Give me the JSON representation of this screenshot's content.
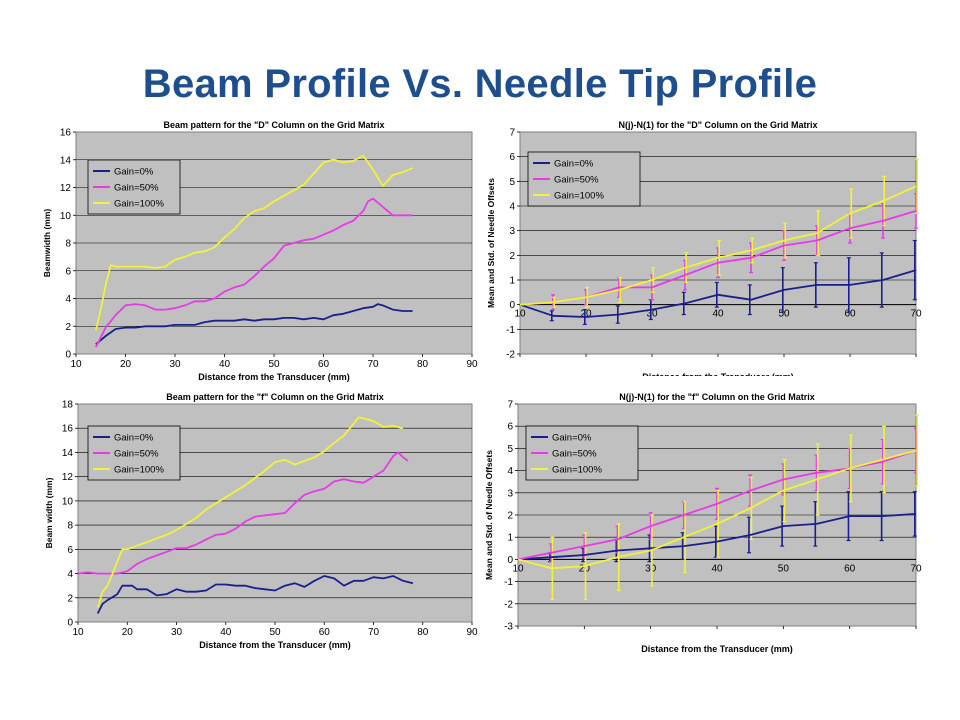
{
  "slide": {
    "title": "Beam Profile Vs. Needle Tip Profile"
  },
  "colors": {
    "gain0": "#1a1f8c",
    "gain50": "#e63be6",
    "gain100": "#f2f23a",
    "plot_bg": "#c0c0c0",
    "title": "#1f4e8c"
  },
  "chart_data": [
    {
      "type": "line",
      "title": "Beam pattern for the \"D\" Column on the Grid Matrix",
      "xlabel": "Distance from the Transducer (mm)",
      "ylabel": "Beamwidth (mm)",
      "xlim": [
        10,
        90
      ],
      "ylim": [
        0,
        16
      ],
      "xticks": [
        10,
        20,
        30,
        40,
        50,
        60,
        70,
        80,
        90
      ],
      "yticks": [
        0,
        2,
        4,
        6,
        8,
        10,
        12,
        14,
        16
      ],
      "legend_position": "top-left",
      "grid": true,
      "series": [
        {
          "name": "Gain=0%",
          "color": "#1a1f8c",
          "x": [
            14,
            16,
            18,
            20,
            22,
            24,
            26,
            28,
            30,
            32,
            34,
            36,
            38,
            40,
            42,
            44,
            46,
            48,
            50,
            52,
            54,
            56,
            58,
            60,
            62,
            64,
            66,
            68,
            70,
            71,
            72,
            74,
            76,
            78
          ],
          "y": [
            0.7,
            1.3,
            1.8,
            1.9,
            1.9,
            2.0,
            2.0,
            2.0,
            2.1,
            2.1,
            2.1,
            2.3,
            2.4,
            2.4,
            2.4,
            2.5,
            2.4,
            2.5,
            2.5,
            2.6,
            2.6,
            2.5,
            2.6,
            2.5,
            2.8,
            2.9,
            3.1,
            3.3,
            3.4,
            3.6,
            3.5,
            3.2,
            3.1,
            3.1
          ]
        },
        {
          "name": "Gain=50%",
          "color": "#e63be6",
          "x": [
            14,
            16,
            18,
            20,
            22,
            24,
            26,
            28,
            30,
            32,
            34,
            36,
            38,
            40,
            42,
            44,
            46,
            48,
            50,
            52,
            54,
            56,
            58,
            60,
            62,
            64,
            66,
            68,
            69,
            70,
            72,
            74,
            76,
            78
          ],
          "y": [
            0.5,
            1.9,
            2.8,
            3.5,
            3.6,
            3.5,
            3.2,
            3.2,
            3.3,
            3.5,
            3.8,
            3.8,
            4.0,
            4.5,
            4.8,
            5.0,
            5.6,
            6.3,
            6.9,
            7.8,
            8.0,
            8.2,
            8.3,
            8.6,
            8.9,
            9.3,
            9.6,
            10.3,
            11.0,
            11.2,
            10.6,
            10.0,
            10.0,
            10.0
          ]
        },
        {
          "name": "Gain=100%",
          "color": "#f2f23a",
          "x": [
            14,
            15,
            16,
            17,
            18,
            20,
            22,
            24,
            26,
            28,
            30,
            32,
            34,
            36,
            38,
            40,
            42,
            44,
            46,
            48,
            50,
            52,
            54,
            56,
            58,
            60,
            62,
            64,
            66,
            68,
            70,
            72,
            74,
            76,
            78
          ],
          "y": [
            1.7,
            3.2,
            5.0,
            6.4,
            6.3,
            6.3,
            6.3,
            6.3,
            6.2,
            6.3,
            6.8,
            7.0,
            7.3,
            7.4,
            7.7,
            8.4,
            9.0,
            9.8,
            10.3,
            10.5,
            11.0,
            11.4,
            11.8,
            12.2,
            13.0,
            13.8,
            14.0,
            13.8,
            13.9,
            14.3,
            13.3,
            12.1,
            12.9,
            13.1,
            13.4
          ]
        }
      ]
    },
    {
      "type": "line",
      "title": "N(j)-N(1) for the \"D\" Column on the Grid Matrix",
      "xlabel": "Distance from the Transducer (mm)",
      "ylabel": "Mean and Std. of Needle Offsets",
      "xlim": [
        10,
        70
      ],
      "ylim": [
        -2,
        7
      ],
      "xticks": [
        10,
        20,
        30,
        40,
        50,
        60,
        70
      ],
      "yticks": [
        -2,
        -1,
        0,
        1,
        2,
        3,
        4,
        5,
        6,
        7
      ],
      "legend_position": "top-left",
      "grid": true,
      "error_bars": true,
      "series": [
        {
          "name": "Gain=0%",
          "color": "#1a1f8c",
          "x": [
            10,
            15,
            20,
            25,
            30,
            35,
            40,
            45,
            50,
            55,
            60,
            65,
            70
          ],
          "y": [
            0,
            -0.45,
            -0.5,
            -0.4,
            -0.2,
            0.05,
            0.4,
            0.2,
            0.6,
            0.8,
            0.8,
            1.0,
            1.4
          ],
          "err": [
            0,
            0.2,
            0.3,
            0.35,
            0.4,
            0.45,
            0.5,
            0.6,
            0.9,
            0.9,
            1.1,
            1.1,
            1.2
          ]
        },
        {
          "name": "Gain=50%",
          "color": "#e63be6",
          "x": [
            10,
            15,
            20,
            25,
            30,
            35,
            40,
            45,
            50,
            55,
            60,
            65,
            70
          ],
          "y": [
            0,
            0.1,
            0.3,
            0.7,
            0.7,
            1.2,
            1.7,
            1.9,
            2.4,
            2.6,
            3.1,
            3.4,
            3.8
          ],
          "err": [
            0,
            0.3,
            0.3,
            0.4,
            0.5,
            0.6,
            0.6,
            0.6,
            0.6,
            0.6,
            0.6,
            0.7,
            0.7
          ]
        },
        {
          "name": "Gain=100%",
          "color": "#f2f23a",
          "x": [
            10,
            15,
            20,
            25,
            30,
            35,
            40,
            45,
            50,
            55,
            60,
            65,
            70
          ],
          "y": [
            0,
            0.1,
            0.3,
            0.6,
            1.0,
            1.5,
            1.9,
            2.2,
            2.6,
            2.9,
            3.7,
            4.2,
            4.8
          ],
          "err": [
            0,
            0.2,
            0.4,
            0.5,
            0.5,
            0.6,
            0.7,
            0.5,
            0.7,
            0.9,
            1.0,
            1.0,
            1.1
          ]
        }
      ]
    },
    {
      "type": "line",
      "title": "Beam pattern for the \"f\" Column on the Grid Matrix",
      "xlabel": "Distance from the Transducer (mm)",
      "ylabel": "Beam width (mm)",
      "xlim": [
        10,
        90
      ],
      "ylim": [
        0,
        18
      ],
      "xticks": [
        10,
        20,
        30,
        40,
        50,
        60,
        70,
        80,
        90
      ],
      "yticks": [
        0,
        2,
        4,
        6,
        8,
        10,
        12,
        14,
        16,
        18
      ],
      "legend_position": "top-left",
      "grid": true,
      "series": [
        {
          "name": "Gain=0%",
          "color": "#1a1f8c",
          "x": [
            14,
            15,
            16,
            18,
            19,
            20,
            21,
            22,
            24,
            26,
            28,
            30,
            32,
            34,
            36,
            38,
            40,
            42,
            44,
            46,
            48,
            50,
            52,
            54,
            56,
            58,
            60,
            62,
            64,
            66,
            68,
            70,
            72,
            74,
            76,
            78
          ],
          "y": [
            0.7,
            1.5,
            1.8,
            2.3,
            3.0,
            3.0,
            3.0,
            2.7,
            2.7,
            2.2,
            2.3,
            2.7,
            2.5,
            2.5,
            2.6,
            3.1,
            3.1,
            3.0,
            3.0,
            2.8,
            2.7,
            2.6,
            3.0,
            3.2,
            2.9,
            3.4,
            3.8,
            3.6,
            3.0,
            3.4,
            3.4,
            3.7,
            3.6,
            3.8,
            3.4,
            3.2
          ]
        },
        {
          "name": "Gain=50%",
          "color": "#e63be6",
          "x": [
            10,
            12,
            14,
            16,
            18,
            20,
            22,
            24,
            26,
            28,
            30,
            32,
            34,
            36,
            38,
            40,
            42,
            44,
            46,
            48,
            50,
            52,
            54,
            56,
            58,
            60,
            62,
            64,
            66,
            68,
            70,
            72,
            74,
            75,
            76,
            77
          ],
          "y": [
            4.0,
            4.1,
            4.0,
            4.0,
            4.0,
            4.2,
            4.8,
            5.2,
            5.5,
            5.8,
            6.1,
            6.1,
            6.4,
            6.8,
            7.2,
            7.3,
            7.7,
            8.3,
            8.7,
            8.8,
            8.9,
            9.0,
            9.8,
            10.5,
            10.8,
            11.0,
            11.6,
            11.8,
            11.6,
            11.5,
            12.0,
            12.5,
            13.7,
            14.0,
            13.6,
            13.3
          ]
        },
        {
          "name": "Gain=100%",
          "color": "#f2f23a",
          "x": [
            14,
            15,
            16,
            17,
            18,
            19,
            20,
            22,
            24,
            26,
            28,
            30,
            32,
            34,
            36,
            38,
            40,
            42,
            44,
            46,
            48,
            50,
            52,
            54,
            56,
            58,
            60,
            62,
            64,
            66,
            67,
            68,
            70,
            72,
            74,
            76
          ],
          "y": [
            1.2,
            2.5,
            3.0,
            4.0,
            5.0,
            6.0,
            6.0,
            6.3,
            6.6,
            6.9,
            7.2,
            7.6,
            8.1,
            8.6,
            9.3,
            9.8,
            10.3,
            10.8,
            11.3,
            11.9,
            12.5,
            13.2,
            13.4,
            13.0,
            13.3,
            13.6,
            14.1,
            14.8,
            15.4,
            16.4,
            16.9,
            16.8,
            16.6,
            16.1,
            16.2,
            16.0
          ]
        }
      ]
    },
    {
      "type": "line",
      "title": "N(j)-N(1) for the \"f\" Column on the Grid Matrix",
      "xlabel": "Distance from the Transducer (mm)",
      "ylabel": "Mean and Std. of Needle Offsets",
      "xlim": [
        10,
        70
      ],
      "ylim": [
        -3,
        7
      ],
      "xticks": [
        10,
        20,
        30,
        40,
        50,
        60,
        70
      ],
      "yticks": [
        -3,
        -2,
        -1,
        0,
        1,
        2,
        3,
        4,
        5,
        6,
        7
      ],
      "legend_position": "top-left",
      "grid": true,
      "error_bars": true,
      "series": [
        {
          "name": "Gain=0%",
          "color": "#1a1f8c",
          "x": [
            10,
            15,
            20,
            25,
            30,
            35,
            40,
            45,
            50,
            55,
            60,
            65,
            70
          ],
          "y": [
            0,
            0.1,
            0.2,
            0.4,
            0.5,
            0.6,
            0.8,
            1.1,
            1.5,
            1.6,
            1.95,
            1.95,
            2.05
          ],
          "err": [
            0,
            0.2,
            0.3,
            0.5,
            0.6,
            0.6,
            0.7,
            0.8,
            0.9,
            1.0,
            1.1,
            1.1,
            1.0
          ]
        },
        {
          "name": "Gain=50%",
          "color": "#e63be6",
          "x": [
            10,
            15,
            20,
            25,
            30,
            35,
            40,
            45,
            50,
            55,
            60,
            65,
            70
          ],
          "y": [
            0,
            0.3,
            0.6,
            0.9,
            1.5,
            2.0,
            2.5,
            3.1,
            3.6,
            3.9,
            4.1,
            4.4,
            4.9
          ],
          "err": [
            0,
            0.4,
            0.5,
            0.6,
            0.6,
            0.6,
            0.7,
            0.7,
            0.7,
            0.8,
            0.9,
            1.0,
            1.0
          ]
        },
        {
          "name": "Gain=100%",
          "color": "#f2f23a",
          "x": [
            10,
            15,
            20,
            25,
            30,
            35,
            40,
            45,
            50,
            55,
            60,
            65,
            70
          ],
          "y": [
            0,
            -0.4,
            -0.3,
            0.1,
            0.4,
            1.0,
            1.6,
            2.3,
            3.1,
            3.6,
            4.1,
            4.5,
            4.9
          ],
          "err": [
            0,
            1.4,
            1.5,
            1.5,
            1.6,
            1.6,
            1.5,
            1.4,
            1.4,
            1.6,
            1.5,
            1.5,
            1.6
          ]
        }
      ]
    }
  ]
}
